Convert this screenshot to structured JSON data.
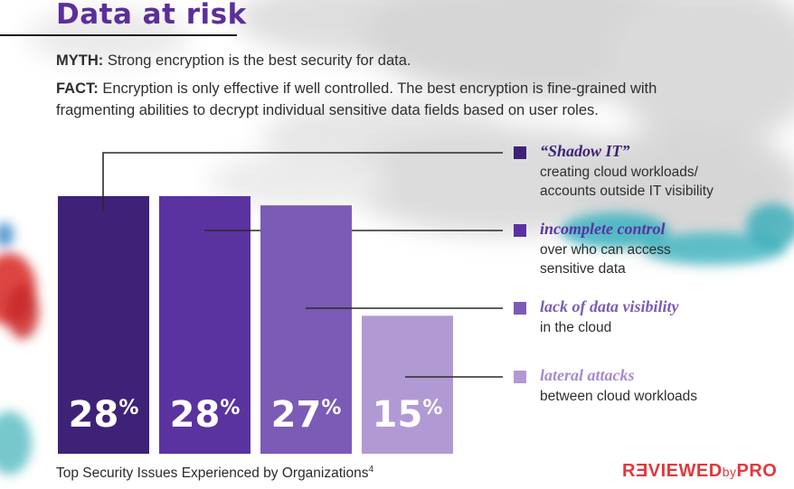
{
  "title": "Data at risk",
  "myth": {
    "label": "MYTH:",
    "text": " Strong encryption is the best security for data."
  },
  "fact": {
    "label": "FACT:",
    "text": " Encryption is only effective if well controlled. The best encryption is fine-grained with fragmenting abilities to decrypt individual sensitive data fields based on user roles."
  },
  "chart_data": {
    "type": "bar",
    "title": "Top Security Issues Experienced by Organizations",
    "title_footnote": "4",
    "categories": [
      "“Shadow IT”",
      "incomplete control",
      "lack of data visibility",
      "lateral attacks"
    ],
    "descriptions": [
      "creating cloud workloads/ accounts outside IT visibility",
      "over who can access sensitive data",
      "in the cloud",
      "between cloud workloads"
    ],
    "values": [
      28,
      28,
      27,
      15
    ],
    "value_labels": [
      "28",
      "28",
      "27",
      "15"
    ],
    "unit": "%",
    "ylim": [
      0,
      28
    ],
    "colors": [
      "#3e2277",
      "#5a33a1",
      "#7b5bb5",
      "#b19ad3"
    ],
    "legend_title_colors": [
      "#3e2277",
      "#5a33a1",
      "#7b5bb5",
      "#a58ccb"
    ],
    "legend_position": "right",
    "grid": false
  },
  "watermark": {
    "part1": "RƎVIEWED",
    "part2": "by",
    "part3": "PRO"
  }
}
